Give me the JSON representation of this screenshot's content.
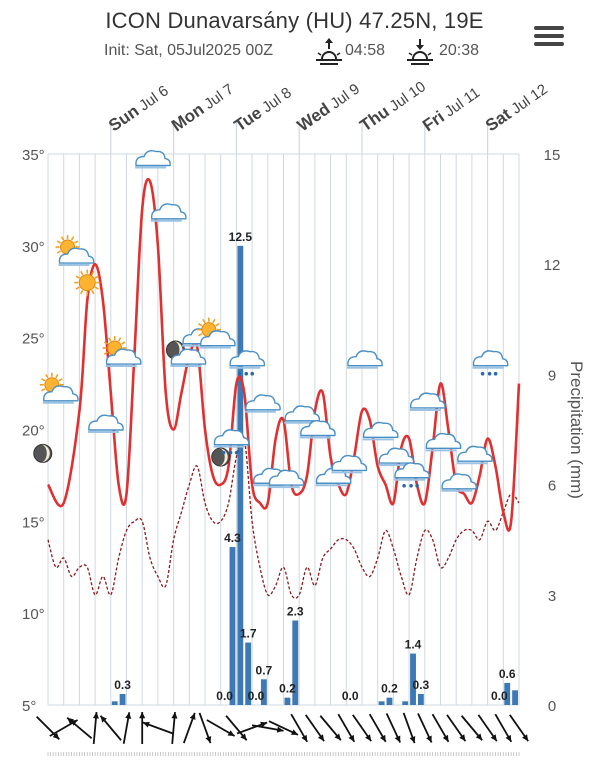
{
  "header": {
    "title": "ICON Dunavarsány (HU) 47.25N, 19E",
    "init": "Init: Sat, 05Jul2025 00Z",
    "sunrise": "04:58",
    "sunset": "20:38"
  },
  "icons": {
    "menu": "hamburger-menu-icon",
    "sunrise": "sunrise-icon",
    "sunset": "sunset-icon"
  },
  "colors": {
    "temperature": "#e03030",
    "dewpoint": "#8b1a1a",
    "precipitation": "#3d7ab5",
    "grid": "#cfd8e0",
    "axis_text": "#555555"
  },
  "chart_data": {
    "type": "line",
    "days": [
      {
        "name": "Sun",
        "date": "Jul 6"
      },
      {
        "name": "Mon",
        "date": "Jul 7"
      },
      {
        "name": "Tue",
        "date": "Jul 8"
      },
      {
        "name": "Wed",
        "date": "Jul 9"
      },
      {
        "name": "Thu",
        "date": "Jul 10"
      },
      {
        "name": "Fri",
        "date": "Jul 11"
      },
      {
        "name": "Sat",
        "date": "Jul 12"
      }
    ],
    "x_hours_range": [
      0,
      180
    ],
    "y_left": {
      "min": 5,
      "max": 35,
      "ticks": [
        "35°",
        "30°",
        "25°",
        "20°",
        "15°",
        "10°",
        "5°"
      ]
    },
    "y_right": {
      "label": "Precipitation (mm)",
      "min": 0,
      "max": 15,
      "ticks": [
        "15",
        "12",
        "9",
        "6",
        "3",
        "0"
      ]
    },
    "grid": true,
    "series": [
      {
        "kind": "temperature",
        "x": [
          0,
          6,
          12,
          15,
          18,
          21,
          24,
          27,
          30,
          33,
          36,
          39,
          42,
          45,
          48,
          51,
          54,
          57,
          60,
          63,
          66,
          69,
          72,
          75,
          78,
          81,
          84,
          87,
          90,
          93,
          96,
          99,
          102,
          105,
          108,
          111,
          114,
          117,
          120,
          123,
          126,
          129,
          132,
          135,
          138,
          141,
          144,
          147,
          150,
          153,
          156,
          159,
          162,
          165,
          168,
          171,
          174,
          177,
          180
        ],
        "y": [
          17,
          16,
          21,
          27,
          29,
          27,
          22,
          17,
          16.5,
          24,
          32,
          33.5,
          30,
          22,
          20,
          22,
          24,
          24.5,
          20,
          17.5,
          17,
          18,
          22.5,
          22,
          17,
          16,
          16,
          19.5,
          20.5,
          17,
          16.5,
          17.5,
          21,
          22,
          18.5,
          17,
          16.5,
          18.5,
          21,
          20.5,
          18,
          17,
          16,
          19,
          19.5,
          17,
          16,
          19,
          22.5,
          20,
          17,
          16.5,
          16,
          17.5,
          19.5,
          18,
          15.5,
          15,
          22.5
        ]
      },
      {
        "kind": "dewpoint",
        "x": [
          0,
          3,
          6,
          9,
          12,
          15,
          18,
          21,
          24,
          27,
          30,
          33,
          36,
          39,
          42,
          45,
          48,
          51,
          54,
          57,
          60,
          63,
          66,
          69,
          72,
          75,
          78,
          81,
          84,
          87,
          90,
          93,
          96,
          99,
          102,
          105,
          108,
          111,
          114,
          117,
          120,
          123,
          126,
          129,
          132,
          135,
          138,
          141,
          144,
          147,
          150,
          153,
          156,
          159,
          162,
          165,
          168,
          171,
          174,
          177,
          180
        ],
        "y": [
          14,
          12.5,
          13,
          12,
          12.5,
          12.5,
          11,
          12,
          11,
          13,
          14.5,
          15,
          15,
          13,
          12,
          11.5,
          14,
          15.5,
          17,
          18,
          16,
          15,
          15,
          16,
          18.5,
          19.5,
          15,
          12.5,
          11,
          11.5,
          12.5,
          11,
          11,
          12.5,
          11.5,
          13,
          13.5,
          14,
          14,
          13.5,
          12.5,
          12,
          13,
          14.5,
          13.5,
          12,
          11,
          13,
          14.5,
          14,
          12.5,
          13,
          14,
          14.5,
          14.5,
          14,
          15,
          14.5,
          15.5,
          16.5,
          16
        ]
      }
    ],
    "precipitation_bars": [
      {
        "start": 24,
        "end": 27,
        "value": 0.1
      },
      {
        "start": 27,
        "end": 30,
        "value": 0.3
      },
      {
        "start": 66,
        "end": 69,
        "value": 0.0
      },
      {
        "start": 69,
        "end": 72,
        "value": 4.3
      },
      {
        "start": 72,
        "end": 75,
        "value": 12.5
      },
      {
        "start": 75,
        "end": 78,
        "value": 1.7
      },
      {
        "start": 78,
        "end": 81,
        "value": 0.0
      },
      {
        "start": 81,
        "end": 84,
        "value": 0.7
      },
      {
        "start": 87,
        "end": 90,
        "value": 0.0
      },
      {
        "start": 90,
        "end": 93,
        "value": 0.2
      },
      {
        "start": 93,
        "end": 96,
        "value": 2.3
      },
      {
        "start": 114,
        "end": 117,
        "value": 0.0
      },
      {
        "start": 126,
        "end": 129,
        "value": 0.1
      },
      {
        "start": 129,
        "end": 132,
        "value": 0.2
      },
      {
        "start": 135,
        "end": 138,
        "value": 0.1
      },
      {
        "start": 138,
        "end": 141,
        "value": 1.4
      },
      {
        "start": 141,
        "end": 144,
        "value": 0.3
      },
      {
        "start": 171,
        "end": 174,
        "value": 0.0
      },
      {
        "start": 174,
        "end": 177,
        "value": 0.6
      },
      {
        "start": 177,
        "end": 180,
        "value": 0.4
      }
    ],
    "data_labels": [
      {
        "text": "0.3",
        "x": 28.5,
        "value": 0.3
      },
      {
        "text": "0.0",
        "x": 67.5,
        "value": 0.0
      },
      {
        "text": "4.3",
        "x": 70.5,
        "value": 4.3
      },
      {
        "text": "12.5",
        "x": 73.5,
        "value": 12.5
      },
      {
        "text": "1.7",
        "x": 76.5,
        "value": 1.7
      },
      {
        "text": "0.0",
        "x": 79.5,
        "value": 0.0
      },
      {
        "text": "0.7",
        "x": 82.5,
        "value": 0.7
      },
      {
        "text": "0.2",
        "x": 91.5,
        "value": 0.2
      },
      {
        "text": "2.3",
        "x": 94.5,
        "value": 2.3
      },
      {
        "text": "0.0",
        "x": 115.5,
        "value": 0.0
      },
      {
        "text": "0.2",
        "x": 130.5,
        "value": 0.2
      },
      {
        "text": "1.4",
        "x": 139.5,
        "value": 1.4
      },
      {
        "text": "0.3",
        "x": 142.5,
        "value": 0.3
      },
      {
        "text": "0.0",
        "x": 172.5,
        "value": 0.0
      },
      {
        "text": "0.6",
        "x": 175.5,
        "value": 0.6
      }
    ],
    "weather_icons": [
      {
        "type": "sun-cloud",
        "x": 3,
        "y": 22
      },
      {
        "type": "moon",
        "x": -2,
        "y": 18.7
      },
      {
        "type": "sun-cloud",
        "x": 9,
        "y": 29.5
      },
      {
        "type": "sun",
        "x": 15,
        "y": 28
      },
      {
        "type": "cloud",
        "x": 21,
        "y": 20.3
      },
      {
        "type": "sun-cloud",
        "x": 27,
        "y": 24
      },
      {
        "type": "cloud",
        "x": 39,
        "y": 34.7
      },
      {
        "type": "cloud",
        "x": 45,
        "y": 31.8
      },
      {
        "type": "moon-cloud",
        "x": 51,
        "y": 24
      },
      {
        "type": "cloud",
        "x": 57,
        "y": 25
      },
      {
        "type": "sun-cloud",
        "x": 63,
        "y": 25
      },
      {
        "type": "moon",
        "x": 66,
        "y": 18.5
      },
      {
        "type": "rain-cloud",
        "x": 69,
        "y": 19.5
      },
      {
        "type": "rain-cloud",
        "x": 75,
        "y": 23.8
      },
      {
        "type": "cloud",
        "x": 81,
        "y": 21.4
      },
      {
        "type": "cloud",
        "x": 84,
        "y": 17.4
      },
      {
        "type": "cloud",
        "x": 90,
        "y": 17.3
      },
      {
        "type": "cloud",
        "x": 96,
        "y": 20.8
      },
      {
        "type": "cloud",
        "x": 102,
        "y": 20
      },
      {
        "type": "cloud",
        "x": 108,
        "y": 17.4
      },
      {
        "type": "cloud",
        "x": 114,
        "y": 18.1
      },
      {
        "type": "cloud",
        "x": 120,
        "y": 23.8
      },
      {
        "type": "cloud",
        "x": 126,
        "y": 19.9
      },
      {
        "type": "cloud",
        "x": 132,
        "y": 18.5
      },
      {
        "type": "rain-cloud",
        "x": 138,
        "y": 17.7
      },
      {
        "type": "cloud",
        "x": 144,
        "y": 21.5
      },
      {
        "type": "cloud",
        "x": 150,
        "y": 19.3
      },
      {
        "type": "cloud",
        "x": 156,
        "y": 17.1
      },
      {
        "type": "cloud",
        "x": 162,
        "y": 18.6
      },
      {
        "type": "rain-cloud",
        "x": 168,
        "y": 23.8
      }
    ],
    "wind_arrows": [
      {
        "x": 0,
        "dir": 135
      },
      {
        "x": 6,
        "dir": 60
      },
      {
        "x": 12,
        "dir": 310
      },
      {
        "x": 18,
        "dir": 5
      },
      {
        "x": 24,
        "dir": 320
      },
      {
        "x": 30,
        "dir": 10
      },
      {
        "x": 36,
        "dir": 0
      },
      {
        "x": 42,
        "dir": 290
      },
      {
        "x": 48,
        "dir": 5
      },
      {
        "x": 54,
        "dir": 20
      },
      {
        "x": 60,
        "dir": 160
      },
      {
        "x": 66,
        "dir": 120
      },
      {
        "x": 72,
        "dir": 140
      },
      {
        "x": 78,
        "dir": 70
      },
      {
        "x": 84,
        "dir": 100
      },
      {
        "x": 90,
        "dir": 115
      },
      {
        "x": 96,
        "dir": 150
      },
      {
        "x": 102,
        "dir": 145
      },
      {
        "x": 108,
        "dir": 140
      },
      {
        "x": 114,
        "dir": 150
      },
      {
        "x": 120,
        "dir": 145
      },
      {
        "x": 126,
        "dir": 150
      },
      {
        "x": 132,
        "dir": 155
      },
      {
        "x": 138,
        "dir": 160
      },
      {
        "x": 144,
        "dir": 155
      },
      {
        "x": 150,
        "dir": 150
      },
      {
        "x": 156,
        "dir": 145
      },
      {
        "x": 162,
        "dir": 140
      },
      {
        "x": 168,
        "dir": 145
      },
      {
        "x": 174,
        "dir": 150
      },
      {
        "x": 180,
        "dir": 145
      }
    ]
  }
}
